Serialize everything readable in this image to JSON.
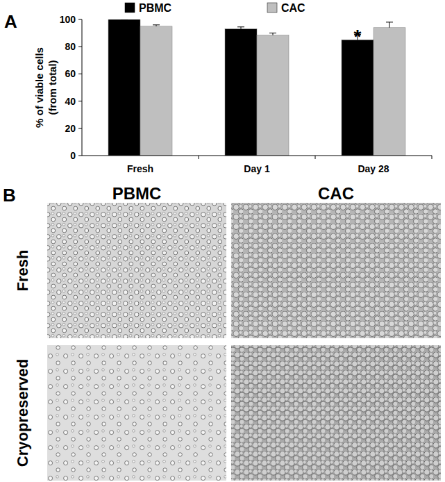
{
  "chart_data": {
    "type": "bar",
    "panel_label": "A",
    "y_label": [
      "% of viable cells",
      "(from total)"
    ],
    "categories": [
      "Fresh",
      "Day 1",
      "Day 28"
    ],
    "series": [
      {
        "name": "PBMC",
        "color": "#000000",
        "values": [
          100,
          93,
          85
        ],
        "errors": [
          0,
          1.5,
          4
        ]
      },
      {
        "name": "CAC",
        "color": "#bfbfbf",
        "values": [
          95,
          88.5,
          94
        ],
        "errors": [
          1,
          1.5,
          4
        ]
      }
    ],
    "ylim": [
      0,
      100
    ],
    "yticks": [
      0,
      20,
      40,
      60,
      80,
      100
    ],
    "grid": false,
    "legend": "top",
    "annotations": [
      {
        "text": "*",
        "category": 2,
        "series": 0
      }
    ]
  },
  "panel_b": {
    "label": "B",
    "columns": [
      "PBMC",
      "CAC"
    ],
    "rows": [
      "Fresh",
      "Cryopreserved"
    ]
  }
}
